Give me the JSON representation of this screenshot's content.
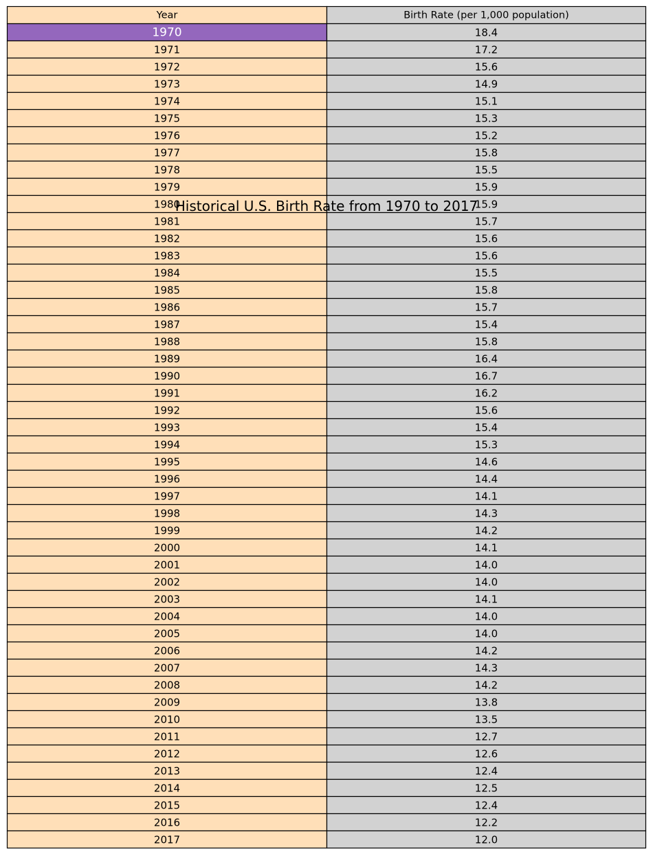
{
  "chart_data": {
    "type": "table",
    "title": "Historical U.S. Birth Rate from 1970 to 2017",
    "columns": [
      "Year",
      "Birth Rate (per 1,000 population)"
    ],
    "rows": [
      [
        "1970",
        "18.4"
      ],
      [
        "1971",
        "17.2"
      ],
      [
        "1972",
        "15.6"
      ],
      [
        "1973",
        "14.9"
      ],
      [
        "1974",
        "15.1"
      ],
      [
        "1975",
        "15.3"
      ],
      [
        "1976",
        "15.2"
      ],
      [
        "1977",
        "15.8"
      ],
      [
        "1978",
        "15.5"
      ],
      [
        "1979",
        "15.9"
      ],
      [
        "1980",
        "15.9"
      ],
      [
        "1981",
        "15.7"
      ],
      [
        "1982",
        "15.6"
      ],
      [
        "1983",
        "15.6"
      ],
      [
        "1984",
        "15.5"
      ],
      [
        "1985",
        "15.8"
      ],
      [
        "1986",
        "15.7"
      ],
      [
        "1987",
        "15.4"
      ],
      [
        "1988",
        "15.8"
      ],
      [
        "1989",
        "16.4"
      ],
      [
        "1990",
        "16.7"
      ],
      [
        "1991",
        "16.2"
      ],
      [
        "1992",
        "15.6"
      ],
      [
        "1993",
        "15.4"
      ],
      [
        "1994",
        "15.3"
      ],
      [
        "1995",
        "14.6"
      ],
      [
        "1996",
        "14.4"
      ],
      [
        "1997",
        "14.1"
      ],
      [
        "1998",
        "14.3"
      ],
      [
        "1999",
        "14.2"
      ],
      [
        "2000",
        "14.1"
      ],
      [
        "2001",
        "14.0"
      ],
      [
        "2002",
        "14.0"
      ],
      [
        "2003",
        "14.1"
      ],
      [
        "2004",
        "14.0"
      ],
      [
        "2005",
        "14.0"
      ],
      [
        "2006",
        "14.2"
      ],
      [
        "2007",
        "14.3"
      ],
      [
        "2008",
        "14.2"
      ],
      [
        "2009",
        "13.8"
      ],
      [
        "2010",
        "13.5"
      ],
      [
        "2011",
        "12.7"
      ],
      [
        "2012",
        "12.6"
      ],
      [
        "2013",
        "12.4"
      ],
      [
        "2014",
        "12.5"
      ],
      [
        "2015",
        "12.4"
      ],
      [
        "2016",
        "12.2"
      ],
      [
        "2017",
        "12.0"
      ]
    ],
    "highlighted_cell": {
      "row": 0,
      "column": 0
    }
  },
  "colors": {
    "year_column_bg": "#ffdfb8",
    "value_column_bg": "#d2d2d2",
    "highlight_bg": "#9467bd",
    "highlight_text": "#ffffff",
    "border": "#000000",
    "text": "#000000"
  }
}
